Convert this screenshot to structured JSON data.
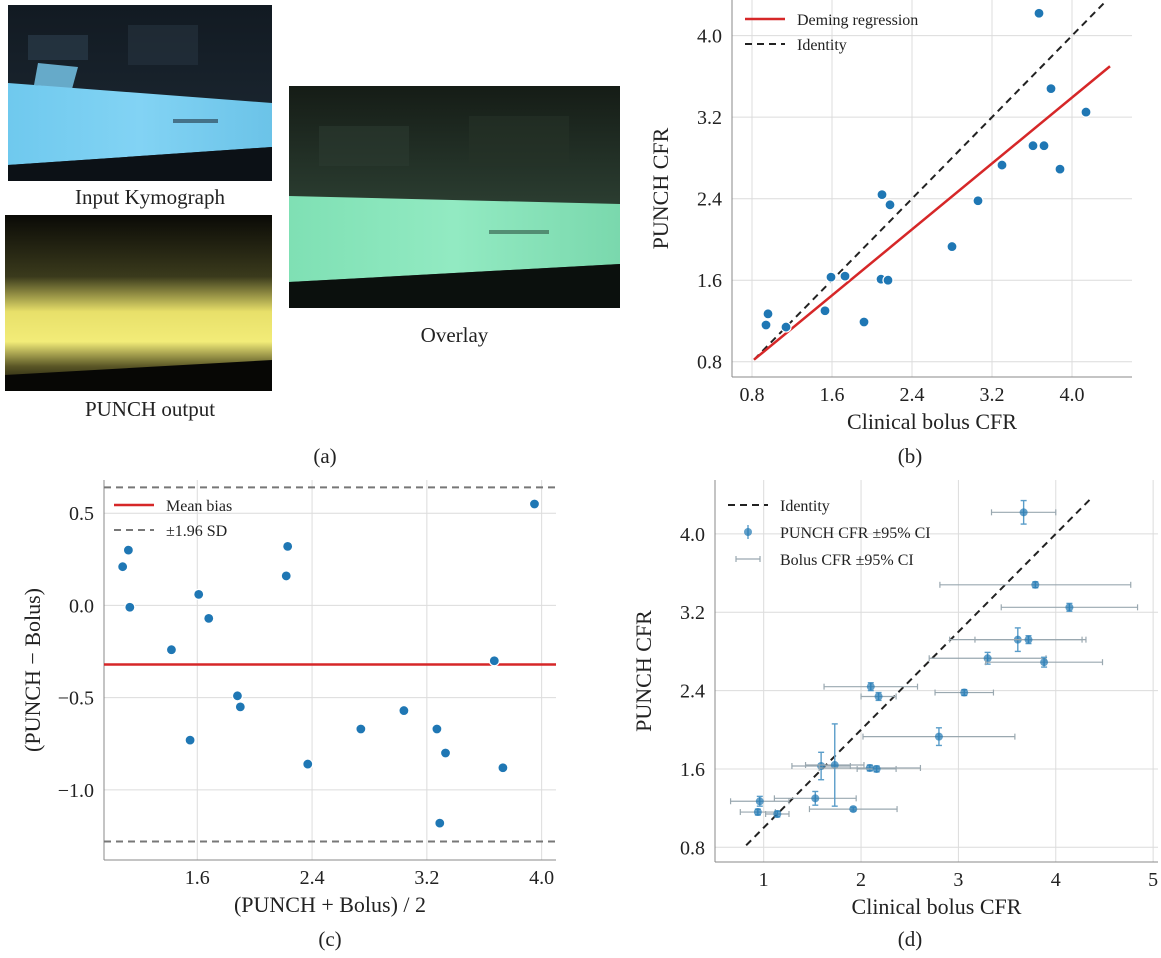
{
  "panel_a": {
    "caption": "(a)",
    "input_label": "Input Kymograph",
    "output_label": "PUNCH output",
    "overlay_label": "Overlay"
  },
  "panel_b_caption": "(b)",
  "panel_c_caption": "(c)",
  "panel_d_caption": "(d)",
  "colors": {
    "points": "#1f77b4",
    "regression": "#d62728",
    "identity": "#222222",
    "grid": "#dcdcdc",
    "sd": "#777777"
  },
  "chart_data": [
    {
      "id": "b",
      "type": "scatter",
      "xlabel": "Clinical bolus CFR",
      "ylabel": "PUNCH CFR",
      "xlim": [
        0.6,
        4.6
      ],
      "ylim": [
        0.65,
        4.35
      ],
      "xticks": [
        0.8,
        1.6,
        2.4,
        3.2,
        4.0
      ],
      "yticks": [
        0.8,
        1.6,
        2.4,
        3.2,
        4.0
      ],
      "grid": true,
      "legend": [
        "Deming regression",
        "Identity"
      ],
      "series": [
        {
          "x": [
            0.94,
            0.96,
            1.14,
            1.53,
            1.59,
            1.73,
            1.92,
            2.09,
            2.1,
            2.16,
            2.18,
            2.8,
            3.06,
            3.3,
            3.61,
            3.67,
            3.72,
            3.79,
            3.88,
            4.14
          ],
          "y": [
            1.16,
            1.27,
            1.14,
            1.3,
            1.63,
            1.64,
            1.19,
            1.61,
            2.44,
            1.6,
            2.34,
            1.93,
            2.38,
            2.73,
            2.92,
            4.22,
            2.92,
            3.48,
            2.69,
            3.25
          ]
        }
      ],
      "regression": {
        "x": [
          0.82,
          4.38
        ],
        "y": [
          0.82,
          3.7
        ]
      },
      "identity": {
        "x": [
          0.82,
          4.35
        ],
        "y": [
          0.82,
          4.35
        ]
      }
    },
    {
      "id": "c",
      "type": "scatter",
      "xlabel": "(PUNCH + Bolus) / 2",
      "ylabel": "(PUNCH − Bolus)",
      "xlim": [
        0.95,
        4.1
      ],
      "ylim": [
        -1.38,
        0.68
      ],
      "xticks": [
        1.6,
        2.4,
        3.2,
        4.0
      ],
      "yticks": [
        0.5,
        0.0,
        -0.5,
        -1.0
      ],
      "ytick_labels": [
        "0.5",
        "0.0",
        "−0.5",
        "−1.0"
      ],
      "grid": true,
      "legend": [
        "Mean bias",
        "±1.96 SD"
      ],
      "mean_bias": -0.32,
      "sd_limits": [
        0.64,
        -1.28
      ],
      "series": [
        {
          "x": [
            1.08,
            1.12,
            1.13,
            1.42,
            1.55,
            1.61,
            1.68,
            1.88,
            1.9,
            2.22,
            2.23,
            2.37,
            2.74,
            3.04,
            3.27,
            3.29,
            3.33,
            3.67,
            3.73,
            3.95
          ],
          "y": [
            0.21,
            0.3,
            -0.01,
            -0.24,
            -0.73,
            0.06,
            -0.07,
            -0.49,
            -0.55,
            0.16,
            0.32,
            -0.86,
            -0.67,
            -0.57,
            -0.67,
            -1.18,
            -0.8,
            -0.3,
            -0.88,
            0.55
          ]
        }
      ]
    },
    {
      "id": "d",
      "type": "scatter",
      "xlabel": "Clinical bolus CFR",
      "ylabel": "PUNCH CFR",
      "xlim": [
        0.5,
        5.05
      ],
      "ylim": [
        0.65,
        4.55
      ],
      "xticks": [
        1,
        2,
        3,
        4,
        5
      ],
      "yticks": [
        0.8,
        1.6,
        2.4,
        3.2,
        4.0
      ],
      "grid": true,
      "legend": [
        "Identity",
        "PUNCH CFR ±95% CI",
        "Bolus CFR ±95% CI"
      ],
      "identity": {
        "x": [
          0.82,
          4.35
        ],
        "y": [
          0.82,
          4.35
        ]
      },
      "series": [
        {
          "x": [
            0.94,
            0.96,
            1.14,
            1.53,
            1.59,
            1.73,
            1.92,
            2.09,
            2.1,
            2.16,
            2.18,
            2.8,
            3.06,
            3.3,
            3.61,
            3.67,
            3.72,
            3.79,
            3.88,
            4.14
          ],
          "y": [
            1.16,
            1.27,
            1.14,
            1.3,
            1.63,
            1.64,
            1.19,
            1.61,
            2.44,
            1.6,
            2.34,
            1.93,
            2.38,
            2.73,
            2.92,
            4.22,
            2.92,
            3.48,
            2.69,
            3.25
          ],
          "xerr": [
            0.18,
            0.3,
            0.12,
            0.42,
            0.3,
            0.3,
            0.45,
            0.52,
            0.48,
            0.2,
            0.18,
            0.78,
            0.3,
            0.6,
            0.7,
            0.33,
            0.55,
            0.98,
            0.6,
            0.7
          ],
          "yerr": [
            0.03,
            0.05,
            0.03,
            0.07,
            0.14,
            0.42,
            0.02,
            0.03,
            0.04,
            0.03,
            0.04,
            0.09,
            0.03,
            0.06,
            0.12,
            0.12,
            0.04,
            0.03,
            0.05,
            0.04
          ]
        }
      ]
    }
  ]
}
